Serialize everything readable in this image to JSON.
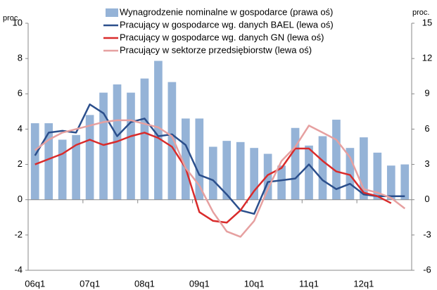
{
  "chart_data": {
    "type": "bar_line",
    "y_label": "proc.",
    "y2_label": "proc.",
    "categories": [
      "06q1",
      null,
      null,
      null,
      "07q1",
      null,
      null,
      null,
      "08q1",
      null,
      null,
      null,
      "09q1",
      null,
      null,
      null,
      "10q1",
      null,
      null,
      null,
      "11q1",
      null,
      null,
      null,
      "12q1",
      null,
      null,
      null
    ],
    "ylim": [
      -4,
      10
    ],
    "yticks": [
      -4,
      -2,
      0,
      2,
      4,
      6,
      8,
      10
    ],
    "y2lim": [
      -6,
      15
    ],
    "y2ticks": [
      -6,
      -3,
      0,
      3,
      6,
      9,
      12,
      15
    ],
    "grid": false,
    "legend": "top",
    "series": [
      {
        "name": "Wynagrodzenie nominalne w gospodarce (prawa oś)",
        "kind": "bar",
        "axis": "y2",
        "color": "#95b3d7",
        "values": [
          6.5,
          6.5,
          5.1,
          5.5,
          7.2,
          9.1,
          9.8,
          9.1,
          10.3,
          11.8,
          10.0,
          6.9,
          6.9,
          4.5,
          5.0,
          4.9,
          4.4,
          3.9,
          2.9,
          6.1,
          4.6,
          5.4,
          6.8,
          4.4,
          5.3,
          4.0,
          2.9,
          3.0
        ]
      },
      {
        "name": "Pracujący w gospodarce wg. danych BAEL (lewa oś)",
        "kind": "line",
        "color": "#2b4f8c",
        "values": [
          2.5,
          3.8,
          3.9,
          3.8,
          5.4,
          4.9,
          3.6,
          4.4,
          4.6,
          3.6,
          3.7,
          3.1,
          1.4,
          1.1,
          0.3,
          -0.6,
          -0.8,
          1.0,
          1.1,
          1.2,
          2.0,
          1.1,
          0.6,
          0.9,
          0.3,
          0.2,
          0.2,
          0.2
        ]
      },
      {
        "name": "Pracujący w gospodarce wg. danych GN (lewa oś)",
        "kind": "line",
        "color": "#d92b2b",
        "values": [
          2.0,
          2.3,
          2.6,
          3.1,
          3.4,
          3.1,
          3.3,
          3.6,
          3.8,
          3.5,
          3.0,
          1.8,
          -0.7,
          -1.2,
          -1.3,
          -0.6,
          0.5,
          1.4,
          1.8,
          2.9,
          2.9,
          2.2,
          1.6,
          1.4,
          0.4,
          0.2,
          -0.2,
          null
        ]
      },
      {
        "name": "Pracujący w sektorze przedsiębiorstw (lewa oś)",
        "kind": "line",
        "color": "#e6a0a0",
        "values": [
          2.8,
          3.4,
          3.8,
          4.0,
          4.2,
          4.4,
          4.5,
          4.5,
          4.3,
          4.1,
          3.6,
          1.8,
          0.8,
          -0.7,
          -1.8,
          -2.1,
          -1.2,
          0.6,
          2.2,
          3.0,
          4.2,
          3.8,
          3.4,
          2.4,
          0.6,
          0.4,
          0.1,
          -0.5
        ]
      }
    ]
  }
}
